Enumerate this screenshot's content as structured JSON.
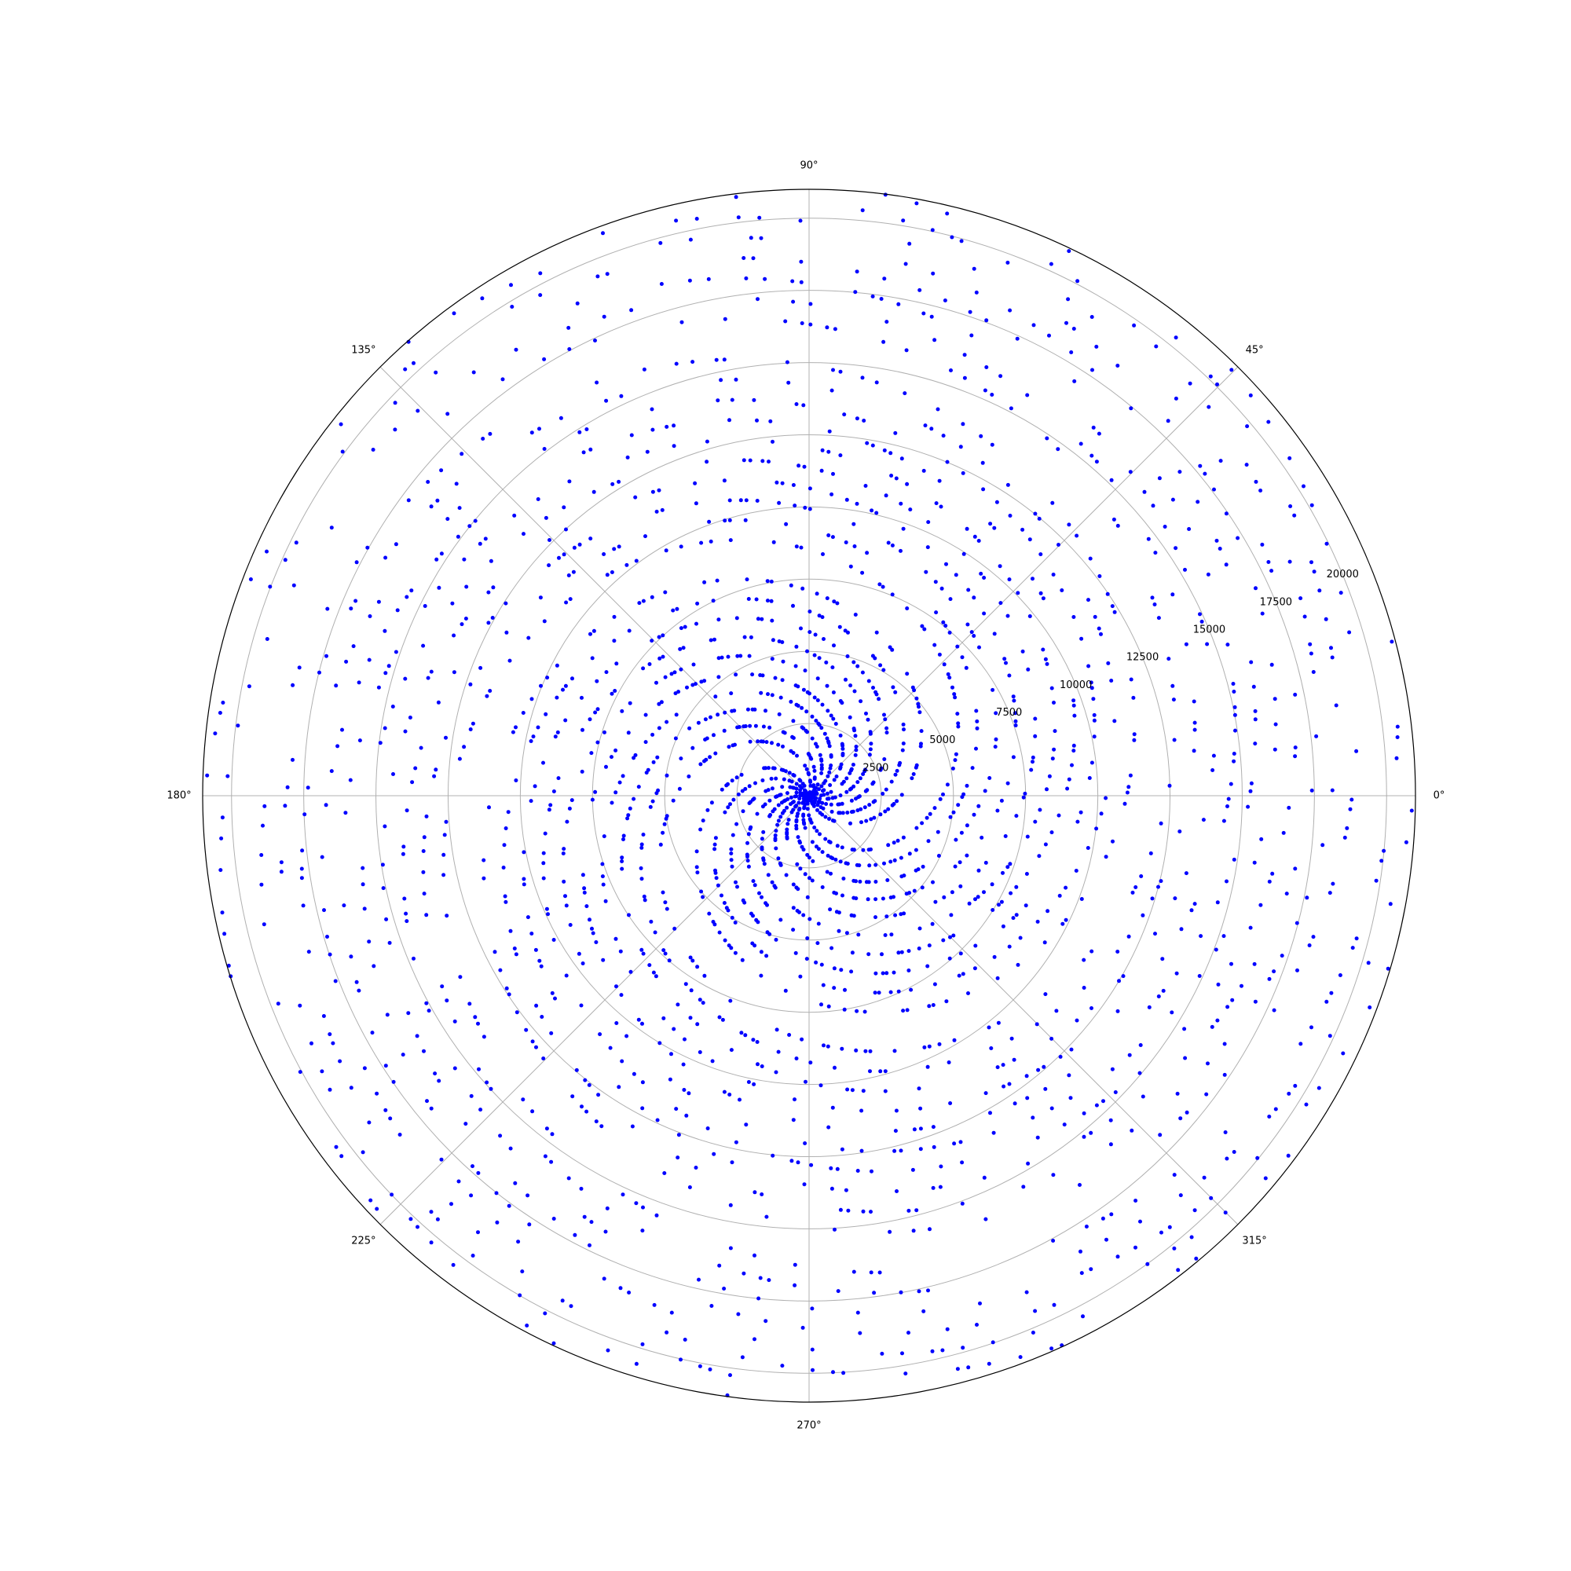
{
  "chart_data": {
    "type": "scatter",
    "projection": "polar",
    "title": "",
    "xlabel": "",
    "ylabel": "",
    "description_of_series": "prime numbers p plotted at (angle = p radians, radius = p)",
    "rule": "primes below 21000",
    "r_max": 21000,
    "r_ticks": [
      2500,
      5000,
      7500,
      10000,
      12500,
      15000,
      17500,
      20000
    ],
    "r_tick_labels": [
      "2500",
      "5000",
      "7500",
      "10000",
      "12500",
      "15000",
      "17500",
      "20000"
    ],
    "r_label_angle_deg": 22.5,
    "theta_ticks_deg": [
      0,
      45,
      90,
      135,
      180,
      225,
      270,
      315
    ],
    "theta_tick_labels": [
      "0°",
      "45°",
      "90°",
      "135°",
      "180°",
      "225°",
      "270°",
      "315°"
    ],
    "grid": true,
    "legend": "none",
    "marker_color": "#0000ff",
    "grid_color": "#b0b0b0",
    "frame_color": "#000000"
  }
}
